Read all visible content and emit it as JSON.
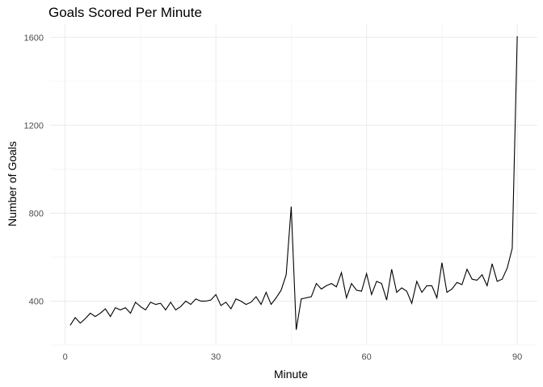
{
  "chart_data": {
    "type": "line",
    "title": "Goals Scored Per Minute",
    "xlabel": "Minute",
    "ylabel": "Number of Goals",
    "xlim": [
      -3,
      94
    ],
    "ylim": [
      200,
      1660
    ],
    "x_ticks": [
      0,
      30,
      60,
      90
    ],
    "y_ticks": [
      400,
      800,
      1200,
      1600
    ],
    "grid": true,
    "line_color": "#000000",
    "x": [
      1,
      2,
      3,
      4,
      5,
      6,
      7,
      8,
      9,
      10,
      11,
      12,
      13,
      14,
      15,
      16,
      17,
      18,
      19,
      20,
      21,
      22,
      23,
      24,
      25,
      26,
      27,
      28,
      29,
      30,
      31,
      32,
      33,
      34,
      35,
      36,
      37,
      38,
      39,
      40,
      41,
      42,
      43,
      44,
      45,
      46,
      47,
      48,
      49,
      50,
      51,
      52,
      53,
      54,
      55,
      56,
      57,
      58,
      59,
      60,
      61,
      62,
      63,
      64,
      65,
      66,
      67,
      68,
      69,
      70,
      71,
      72,
      73,
      74,
      75,
      76,
      77,
      78,
      79,
      80,
      81,
      82,
      83,
      84,
      85,
      86,
      87,
      88,
      89,
      90
    ],
    "y": [
      290,
      325,
      300,
      320,
      345,
      330,
      345,
      365,
      330,
      370,
      360,
      370,
      345,
      395,
      375,
      360,
      395,
      385,
      390,
      360,
      395,
      360,
      375,
      400,
      385,
      410,
      400,
      400,
      405,
      430,
      380,
      395,
      365,
      410,
      400,
      385,
      395,
      420,
      385,
      440,
      385,
      415,
      450,
      520,
      830,
      270,
      410,
      415,
      420,
      480,
      455,
      470,
      480,
      465,
      530,
      415,
      480,
      450,
      445,
      525,
      430,
      490,
      480,
      405,
      545,
      440,
      460,
      445,
      390,
      490,
      440,
      470,
      470,
      415,
      575,
      440,
      455,
      485,
      475,
      545,
      500,
      495,
      520,
      470,
      570,
      490,
      500,
      550,
      640,
      1605
    ]
  }
}
